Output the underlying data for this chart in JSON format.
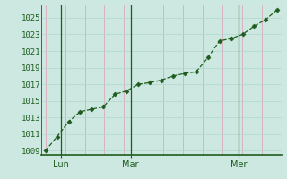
{
  "background_color": "#cce8e0",
  "plot_bg_color": "#cce8e0",
  "grid_color_v": "#dbaabb",
  "grid_color_h": "#b8d8d0",
  "line_color": "#1e5c1e",
  "marker_color": "#1e5c1e",
  "x_values": [
    0,
    3,
    6,
    9,
    12,
    15,
    18,
    21,
    24,
    27,
    30,
    33,
    36,
    39,
    42,
    45,
    48,
    51,
    54,
    57,
    60
  ],
  "y_values": [
    1009.0,
    1010.7,
    1012.5,
    1013.7,
    1014.0,
    1014.3,
    1015.8,
    1016.2,
    1017.0,
    1017.2,
    1017.5,
    1018.0,
    1018.3,
    1018.5,
    1020.2,
    1022.2,
    1022.5,
    1023.0,
    1024.0,
    1024.8,
    1026.0
  ],
  "yticks": [
    1009,
    1011,
    1013,
    1015,
    1017,
    1019,
    1021,
    1023,
    1025
  ],
  "ylim": [
    1008.5,
    1026.5
  ],
  "xlim": [
    -1,
    61
  ],
  "num_vgrid": 12,
  "xtick_positions": [
    4,
    22,
    50
  ],
  "xtick_labels": [
    "Lun",
    "Mar",
    "Mer"
  ],
  "day_vline_positions": [
    4,
    22,
    50
  ],
  "label_fontsize": 6.5,
  "xtick_fontsize": 7
}
